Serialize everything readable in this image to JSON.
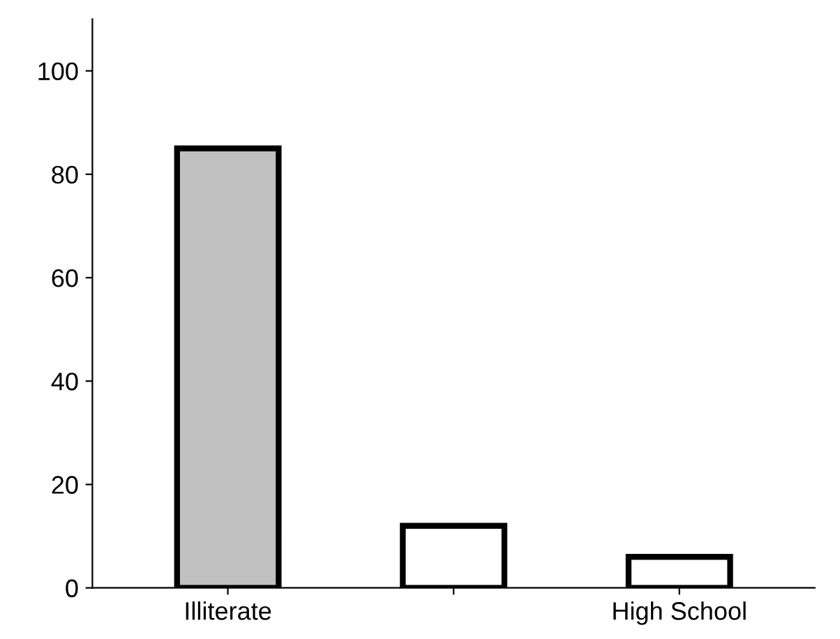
{
  "chart_data": {
    "type": "bar",
    "categories": [
      "Illiterate",
      null,
      "High School"
    ],
    "values": [
      85,
      12,
      6
    ],
    "colors": [
      "#c0c0c0",
      "#ffffff",
      "#ffffff"
    ],
    "ylim": [
      0,
      110
    ],
    "yticks": [
      0,
      20,
      40,
      60,
      80,
      100
    ],
    "grid": false
  }
}
